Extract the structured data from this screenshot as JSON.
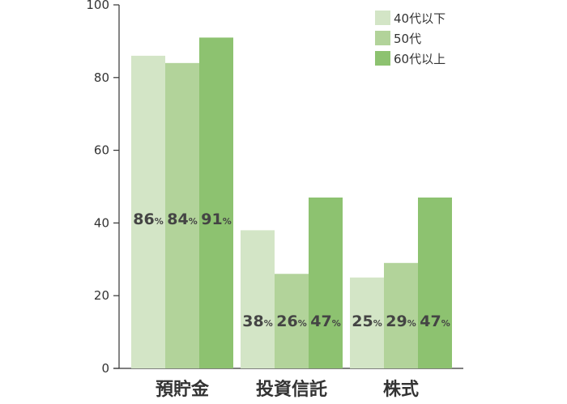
{
  "chart_data": {
    "type": "bar",
    "categories": [
      "預貯金",
      "投資信託",
      "株式"
    ],
    "series": [
      {
        "name": "40代以下",
        "values": [
          86,
          38,
          25
        ],
        "color": "#d3e5c6"
      },
      {
        "name": "50代",
        "values": [
          84,
          26,
          29
        ],
        "color": "#b2d39a"
      },
      {
        "name": "60代以上",
        "values": [
          91,
          47,
          47
        ],
        "color": "#8dc270"
      }
    ],
    "value_unit": "%",
    "ylim": [
      0,
      100
    ],
    "yticks": [
      0,
      20,
      40,
      60,
      80,
      100
    ],
    "title": "",
    "xlabel": "",
    "ylabel": "",
    "grid": false,
    "legend_position": "top-right",
    "data_label_position": {
      "預貯金": "middle",
      "投資信託": "bottom",
      "株式": "bottom"
    }
  }
}
